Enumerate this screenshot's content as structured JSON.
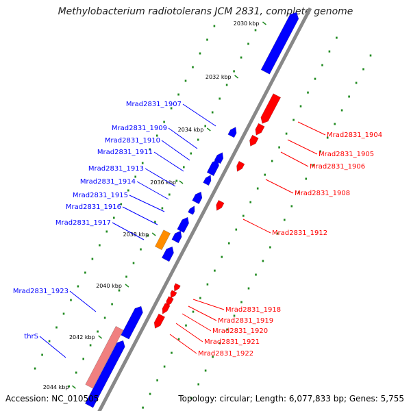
{
  "title": "Methylobacterium radiotolerans JCM 2831, complete genome",
  "footer": {
    "accession_label": "Accession: NC_010505",
    "topology_label": "Topology: circular; Length: 6,077,833 bp; Genes: 5,755"
  },
  "colors": {
    "forward": "#0000ff",
    "reverse": "#ff0000",
    "rna": "#ff8c00",
    "highlight": "#f08080",
    "backbone": "#888888",
    "dots": "#228b22"
  },
  "kbp_ticks": [
    "2030 kbp",
    "2032 kbp",
    "2034 kbp",
    "2036 kbp",
    "2038 kbp",
    "2040 kbp",
    "2042 kbp",
    "2044 kbp"
  ],
  "forward_genes": [
    "Mrad2831_1907",
    "Mrad2831_1909",
    "Mrad2831_1910",
    "Mrad2831_1911",
    "Mrad2831_1913",
    "Mrad2831_1914",
    "Mrad2831_1915",
    "Mrad2831_1916",
    "Mrad2831_1917",
    "Mrad2831_1923",
    "thrS"
  ],
  "reverse_genes": [
    "Mrad2831_1904",
    "Mrad2831_1905",
    "Mrad2831_1906",
    "Mrad2831_1908",
    "Mrad2831_1912",
    "Mrad2831_1918",
    "Mrad2831_1919",
    "Mrad2831_1920",
    "Mrad2831_1921",
    "Mrad2831_1922"
  ]
}
